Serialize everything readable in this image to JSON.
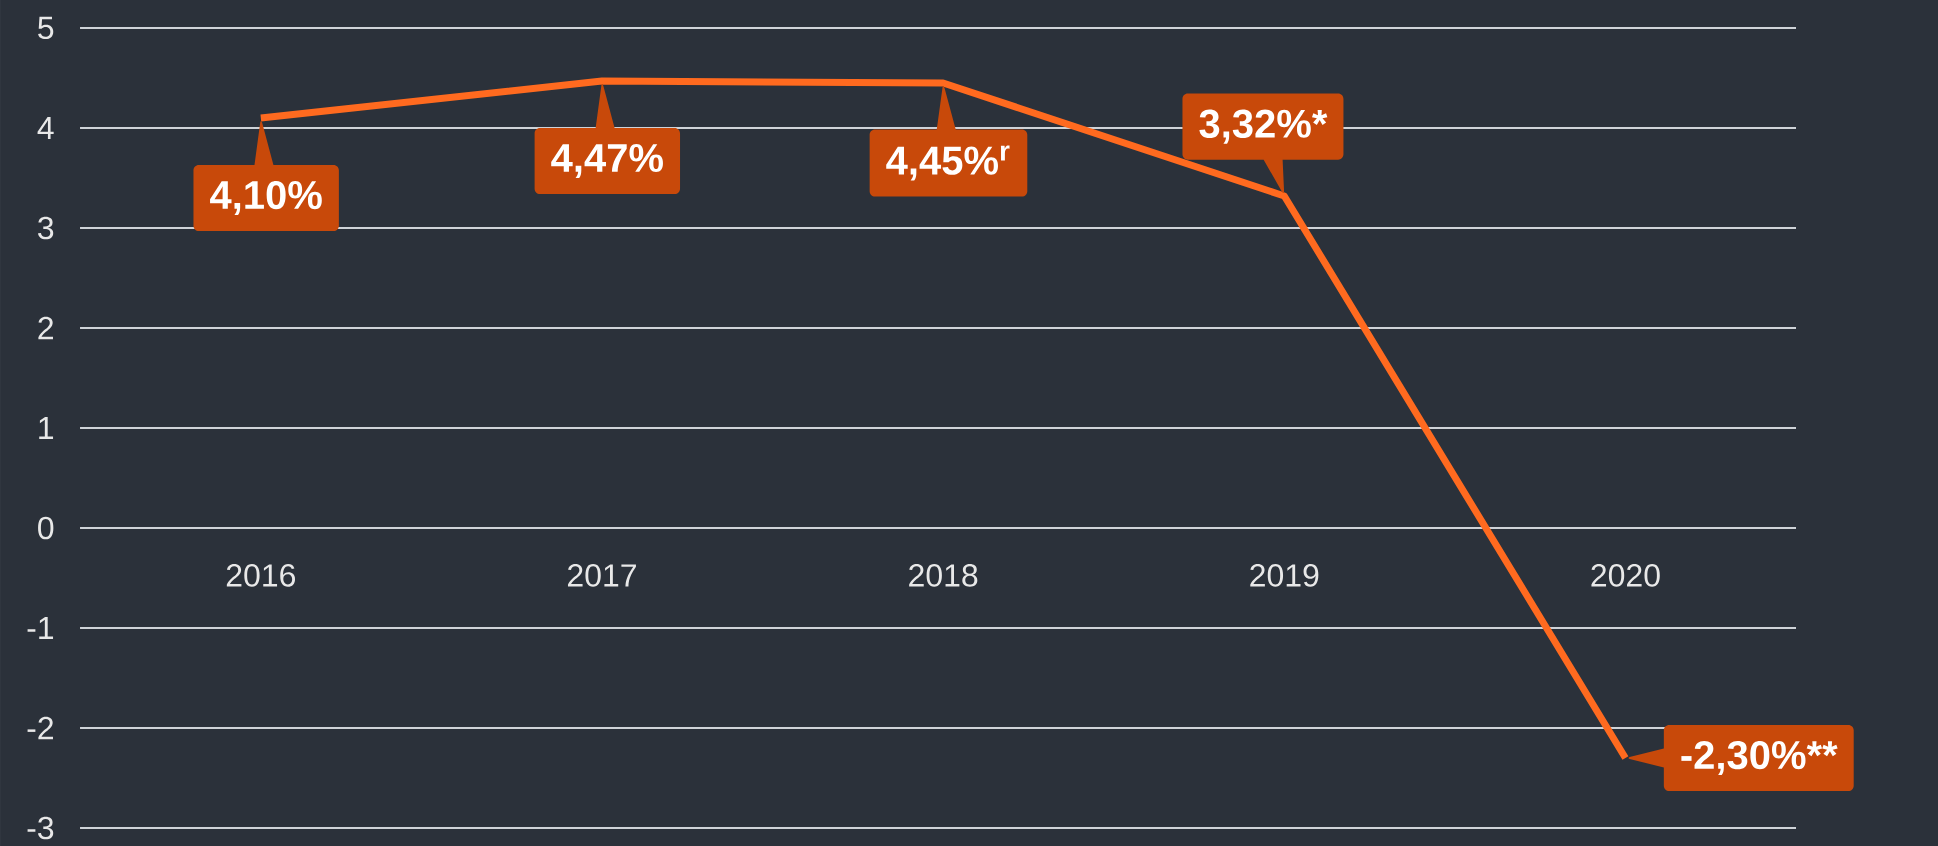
{
  "chart_data": {
    "type": "line",
    "categories": [
      "2016",
      "2017",
      "2018",
      "2019",
      "2020"
    ],
    "values": [
      4.1,
      4.47,
      4.45,
      3.32,
      -2.3
    ],
    "value_labels": [
      "4,10%",
      "4,47%",
      "4,45%$^{r}$",
      "3,32%*",
      "-2,30%**"
    ],
    "color": "#ff6a1f",
    "ylim": [
      -3,
      5
    ],
    "yticks": [
      -3,
      -2,
      -1,
      0,
      1,
      2,
      3,
      4,
      5
    ],
    "grid": "y"
  }
}
